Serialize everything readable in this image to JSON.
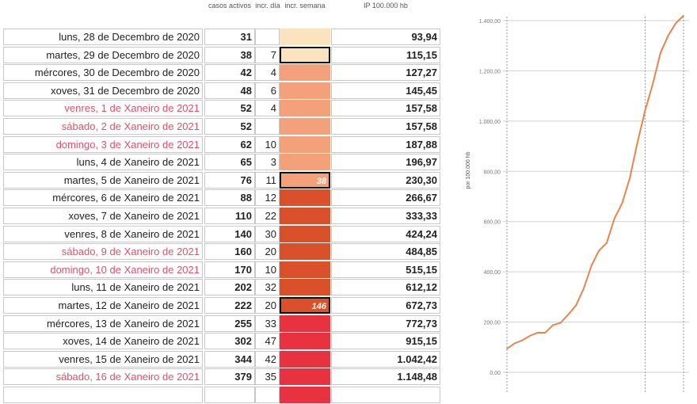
{
  "headers": {
    "casos": "casos activos",
    "dia": "incr. día",
    "semana": "incr. semana",
    "ip": "IP 100.000 hb"
  },
  "colors": {
    "week0": "#fbe3c0",
    "week1": "#f4a07a",
    "week2": "#d9502a",
    "week3": "#e8323f",
    "weekend_text": "#e0506a",
    "line": "#e8844a"
  },
  "rows": [
    {
      "date": "luns, 28 de Decembro de 2020",
      "casos": "31",
      "dia": "",
      "semana": "",
      "ip": "93,94",
      "weekend": false,
      "week": 0
    },
    {
      "date": "martes, 29 de Decembro de 2020",
      "casos": "38",
      "dia": "7",
      "semana": "",
      "ip": "115,15",
      "weekend": false,
      "week": 0,
      "mark": true
    },
    {
      "date": "mércores, 30 de Decembro de 2020",
      "casos": "42",
      "dia": "4",
      "semana": "",
      "ip": "127,27",
      "weekend": false,
      "week": 1
    },
    {
      "date": "xoves, 31 de Decembro de 2020",
      "casos": "48",
      "dia": "6",
      "semana": "",
      "ip": "145,45",
      "weekend": false,
      "week": 1
    },
    {
      "date": "venres, 1 de Xaneiro de 2021",
      "casos": "52",
      "dia": "4",
      "semana": "",
      "ip": "157,58",
      "weekend": true,
      "week": 1
    },
    {
      "date": "sábado, 2 de Xaneiro de 2021",
      "casos": "52",
      "dia": "",
      "semana": "",
      "ip": "157,58",
      "weekend": true,
      "week": 1
    },
    {
      "date": "domingo, 3 de Xaneiro de 2021",
      "casos": "62",
      "dia": "10",
      "semana": "",
      "ip": "187,88",
      "weekend": true,
      "week": 1
    },
    {
      "date": "luns, 4 de Xaneiro de 2021",
      "casos": "65",
      "dia": "3",
      "semana": "",
      "ip": "196,97",
      "weekend": false,
      "week": 1
    },
    {
      "date": "martes, 5 de Xaneiro de 2021",
      "casos": "76",
      "dia": "11",
      "semana": "38",
      "ip": "230,30",
      "weekend": false,
      "week": 1,
      "mark": true
    },
    {
      "date": "mércores, 6 de Xaneiro de 2021",
      "casos": "88",
      "dia": "12",
      "semana": "",
      "ip": "266,67",
      "weekend": false,
      "week": 2
    },
    {
      "date": "xoves, 7 de Xaneiro de 2021",
      "casos": "110",
      "dia": "22",
      "semana": "",
      "ip": "333,33",
      "weekend": false,
      "week": 2
    },
    {
      "date": "venres, 8 de Xaneiro de 2021",
      "casos": "140",
      "dia": "30",
      "semana": "",
      "ip": "424,24",
      "weekend": false,
      "week": 2
    },
    {
      "date": "sábado, 9 de Xaneiro de 2021",
      "casos": "160",
      "dia": "20",
      "semana": "",
      "ip": "484,85",
      "weekend": true,
      "week": 2
    },
    {
      "date": "domingo, 10 de Xaneiro de 2021",
      "casos": "170",
      "dia": "10",
      "semana": "",
      "ip": "515,15",
      "weekend": true,
      "week": 2
    },
    {
      "date": "luns, 11 de Xaneiro de 2021",
      "casos": "202",
      "dia": "32",
      "semana": "",
      "ip": "612,12",
      "weekend": false,
      "week": 2
    },
    {
      "date": "martes, 12 de Xaneiro de 2021",
      "casos": "222",
      "dia": "20",
      "semana": "146",
      "ip": "672,73",
      "weekend": false,
      "week": 2,
      "mark": true
    },
    {
      "date": "mércores, 13 de Xaneiro de 2021",
      "casos": "255",
      "dia": "33",
      "semana": "",
      "ip": "772,73",
      "weekend": false,
      "week": 3
    },
    {
      "date": "xoves, 14 de Xaneiro de 2021",
      "casos": "302",
      "dia": "47",
      "semana": "",
      "ip": "915,15",
      "weekend": false,
      "week": 3
    },
    {
      "date": "venres, 15 de Xaneiro de 2021",
      "casos": "344",
      "dia": "42",
      "semana": "",
      "ip": "1.042,42",
      "weekend": false,
      "week": 3
    },
    {
      "date": "sábado, 16 de Xaneiro de 2021",
      "casos": "379",
      "dia": "35",
      "semana": "",
      "ip": "1.148,48",
      "weekend": true,
      "week": 3
    }
  ],
  "chart_data": {
    "type": "line",
    "ylabel": "por 100.000 hb",
    "ylim": [
      0,
      1400
    ],
    "yticks": [
      "0,00",
      "200,00",
      "400,00",
      "600,00",
      "800,00",
      "1.000,00",
      "1.200,00",
      "1.400,00"
    ],
    "yticks_values": [
      0,
      200,
      400,
      600,
      800,
      1000,
      1200,
      1400
    ],
    "grid": true,
    "series": [
      {
        "name": "IP 100.000 hb",
        "values": [
          93.94,
          115.15,
          127.27,
          145.45,
          157.58,
          157.58,
          187.88,
          196.97,
          230.3,
          266.67,
          333.33,
          424.24,
          484.85,
          515.15,
          612.12,
          672.73,
          772.73,
          915.15,
          1042.42,
          1148.48,
          1272,
          1340,
          1390,
          1420
        ]
      }
    ],
    "vlines_at_index": [
      0,
      18,
      23
    ]
  }
}
